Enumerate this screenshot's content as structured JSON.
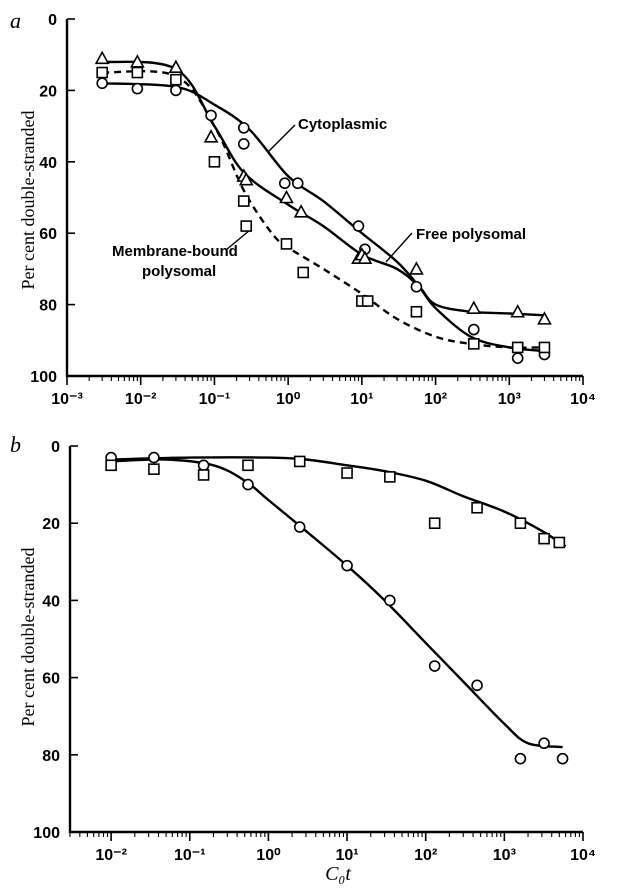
{
  "chart_data": [
    {
      "id": "a",
      "type": "scatter",
      "panel_label": "a",
      "xlabel": "",
      "ylabel": "Per cent double-stranded",
      "xscale": "log",
      "xlim": [
        0.001,
        10000
      ],
      "ylim": [
        100,
        0
      ],
      "y_inverted": true,
      "x_tick_labels": [
        "10⁻³",
        "10⁻²",
        "10⁻¹",
        "10⁰",
        "10¹",
        "10²",
        "10³",
        "10⁴"
      ],
      "y_ticks": [
        0,
        20,
        40,
        60,
        80,
        100
      ],
      "y_tick_labels": [
        "0",
        "20",
        "40",
        "60",
        "80",
        "100"
      ],
      "annotations": [
        {
          "text": "Cytoplasmic",
          "target": "circles"
        },
        {
          "text": "Free polysomal",
          "target": "triangles"
        },
        {
          "text": "Membrane-bound",
          "target": "squares"
        },
        {
          "text": "polysomal",
          "target": "squares"
        }
      ],
      "series": [
        {
          "marker": "circle",
          "line": "solid",
          "points": [
            [
              0.003,
              18
            ],
            [
              0.009,
              19.5
            ],
            [
              0.03,
              20
            ],
            [
              0.09,
              27
            ],
            [
              0.25,
              30.5
            ],
            [
              0.25,
              35
            ],
            [
              0.9,
              46
            ],
            [
              1.35,
              46
            ],
            [
              9,
              58
            ],
            [
              11,
              64.5
            ],
            [
              55,
              75
            ],
            [
              330,
              87
            ],
            [
              1300,
              95
            ],
            [
              3000,
              94
            ]
          ],
          "curve": [
            [
              0.003,
              18
            ],
            [
              0.03,
              19
            ],
            [
              0.1,
              24
            ],
            [
              0.3,
              31
            ],
            [
              1,
              44
            ],
            [
              3,
              51
            ],
            [
              10,
              60
            ],
            [
              30,
              68
            ],
            [
              60,
              75
            ],
            [
              100,
              81
            ],
            [
              300,
              89
            ],
            [
              1000,
              92
            ],
            [
              3000,
              93
            ]
          ]
        },
        {
          "marker": "triangle",
          "line": "solid",
          "points": [
            [
              0.003,
              11
            ],
            [
              0.009,
              12
            ],
            [
              0.03,
              13.5
            ],
            [
              0.09,
              33
            ],
            [
              0.25,
              44
            ],
            [
              0.27,
              45
            ],
            [
              0.95,
              50
            ],
            [
              1.5,
              54
            ],
            [
              9,
              67
            ],
            [
              10,
              66
            ],
            [
              11,
              67
            ],
            [
              55,
              70
            ],
            [
              330,
              81
            ],
            [
              1300,
              82
            ],
            [
              3000,
              84
            ]
          ],
          "curve": [
            [
              0.003,
              12
            ],
            [
              0.03,
              14
            ],
            [
              0.1,
              30
            ],
            [
              0.25,
              43
            ],
            [
              1,
              52
            ],
            [
              3,
              58
            ],
            [
              10,
              66
            ],
            [
              30,
              70
            ],
            [
              60,
              75
            ],
            [
              100,
              80
            ],
            [
              300,
              82
            ],
            [
              1000,
              82.5
            ],
            [
              3000,
              83
            ]
          ]
        },
        {
          "marker": "square",
          "line": "dashed",
          "points": [
            [
              0.003,
              15
            ],
            [
              0.009,
              15
            ],
            [
              0.03,
              17
            ],
            [
              0.1,
              40
            ],
            [
              0.25,
              51
            ],
            [
              0.27,
              58
            ],
            [
              0.95,
              63
            ],
            [
              1.6,
              71
            ],
            [
              10,
              79
            ],
            [
              12,
              79
            ],
            [
              55,
              82
            ],
            [
              330,
              91
            ],
            [
              1300,
              92
            ],
            [
              3000,
              92
            ]
          ],
          "curve": [
            [
              0.003,
              15
            ],
            [
              0.03,
              16
            ],
            [
              0.1,
              30
            ],
            [
              0.25,
              48
            ],
            [
              0.6,
              60
            ],
            [
              1,
              64
            ],
            [
              3,
              70
            ],
            [
              10,
              77
            ],
            [
              30,
              84
            ],
            [
              100,
              89
            ],
            [
              300,
              91
            ],
            [
              1000,
              92
            ],
            [
              3000,
              92
            ]
          ]
        }
      ]
    },
    {
      "id": "b",
      "type": "scatter",
      "panel_label": "b",
      "xlabel": "C₀t",
      "ylabel": "Per cent double-stranded",
      "xscale": "log",
      "xlim": [
        0.003,
        10000
      ],
      "ylim": [
        100,
        0
      ],
      "y_inverted": true,
      "x_tick_labels": [
        "10⁻²",
        "10⁻¹",
        "10⁰",
        "10¹",
        "10²",
        "10³",
        "10⁴"
      ],
      "y_ticks": [
        0,
        20,
        40,
        60,
        80,
        100
      ],
      "y_tick_labels": [
        "0",
        "20",
        "40",
        "60",
        "80",
        "100"
      ],
      "series": [
        {
          "marker": "circle",
          "line": "solid",
          "points": [
            [
              0.01,
              3
            ],
            [
              0.035,
              3
            ],
            [
              0.15,
              5
            ],
            [
              0.55,
              10
            ],
            [
              2.5,
              21
            ],
            [
              10,
              31
            ],
            [
              35,
              40
            ],
            [
              130,
              57
            ],
            [
              450,
              62
            ],
            [
              1600,
              81
            ],
            [
              3200,
              77
            ],
            [
              5500,
              81
            ]
          ],
          "curve": [
            [
              0.01,
              4
            ],
            [
              0.05,
              3.5
            ],
            [
              0.2,
              5
            ],
            [
              0.5,
              9
            ],
            [
              1,
              14
            ],
            [
              3,
              22
            ],
            [
              10,
              31
            ],
            [
              30,
              40
            ],
            [
              100,
              51
            ],
            [
              300,
              61
            ],
            [
              1000,
              72
            ],
            [
              2000,
              77
            ],
            [
              5500,
              78
            ]
          ]
        },
        {
          "marker": "square",
          "line": "solid",
          "points": [
            [
              0.01,
              5
            ],
            [
              0.035,
              6
            ],
            [
              0.15,
              7.5
            ],
            [
              0.55,
              5
            ],
            [
              2.5,
              4
            ],
            [
              10,
              7
            ],
            [
              35,
              8
            ],
            [
              130,
              20
            ],
            [
              450,
              16
            ],
            [
              1600,
              20
            ],
            [
              3200,
              24
            ],
            [
              5000,
              25
            ]
          ],
          "curve": [
            [
              0.01,
              3.5
            ],
            [
              0.1,
              3
            ],
            [
              1,
              3
            ],
            [
              3,
              3.5
            ],
            [
              10,
              5
            ],
            [
              30,
              6.5
            ],
            [
              100,
              9
            ],
            [
              300,
              13
            ],
            [
              1000,
              17
            ],
            [
              3000,
              22
            ],
            [
              6000,
              26
            ]
          ]
        }
      ]
    }
  ]
}
